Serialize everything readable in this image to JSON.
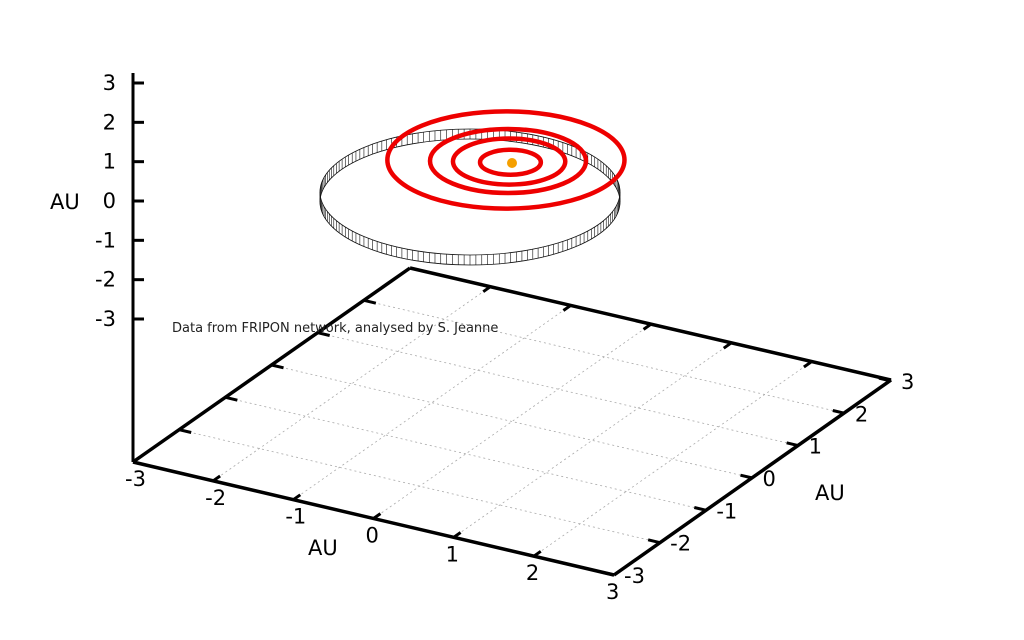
{
  "chart_data": {
    "type": "scatter",
    "projection": "3d",
    "annotation": "Data from FRIPON network, analysed by S. Jeanne",
    "axes": {
      "x": {
        "label": "AU",
        "ticks": [
          "-3",
          "-2",
          "-1",
          "0",
          "1",
          "2",
          "3"
        ],
        "range": [
          -3,
          3
        ]
      },
      "y": {
        "label": "AU",
        "ticks": [
          "-3",
          "-2",
          "-1",
          "0",
          "1",
          "2",
          "3"
        ],
        "range": [
          -3,
          3
        ]
      },
      "z": {
        "label": "AU",
        "ticks": [
          "-3",
          "-2",
          "-1",
          "0",
          "1",
          "2",
          "3"
        ],
        "range": [
          -3,
          3
        ]
      }
    },
    "grid": true,
    "sun": {
      "x": 0,
      "y": 0,
      "z": 1,
      "color": "#f5a000"
    },
    "planet_orbits": {
      "color": "#ee0000",
      "z": 1,
      "radii_au": [
        0.39,
        0.72,
        1.0,
        1.52
      ]
    },
    "object_orbit": {
      "color": "#000000",
      "style": "orbit with drop lines to plane",
      "aphelion_au": 1.7,
      "perihelion_au": 0.6,
      "inclination_hint": "near ecliptic, projected below planetary orbits"
    }
  }
}
